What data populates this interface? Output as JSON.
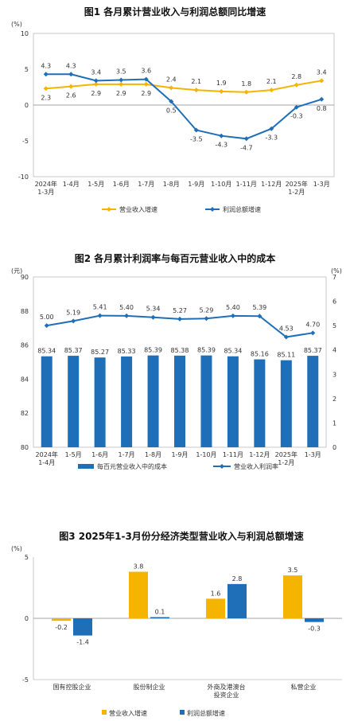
{
  "chart_data": [
    {
      "type": "line",
      "title": "图1  各月累计营业收入与利润总额同比增速",
      "ylabel": "(%)",
      "ylim": [
        -10,
        10
      ],
      "yticks": [
        "10",
        "5",
        "0",
        "-5",
        "-10"
      ],
      "categories": [
        "2024年\n1-3月",
        "1-4月",
        "1-5月",
        "1-6月",
        "1-7月",
        "1-8月",
        "1-9月",
        "1-10月",
        "1-11月",
        "1-12月",
        "2025年\n1-2月",
        "1-3月"
      ],
      "series": [
        {
          "name": "营业收入增速",
          "color": "#f5b400",
          "values": [
            2.3,
            2.6,
            2.9,
            2.9,
            2.9,
            2.4,
            2.1,
            1.9,
            1.8,
            2.1,
            2.8,
            3.4
          ],
          "labels": [
            "2.3",
            "2.6",
            "2.9",
            "2.9",
            "2.9",
            "2.4",
            "2.1",
            "1.9",
            "1.8",
            "2.1",
            "2.8",
            "3.4"
          ]
        },
        {
          "name": "利润总额增速",
          "color": "#1f6fb8",
          "values": [
            4.3,
            4.3,
            3.4,
            3.5,
            3.6,
            0.5,
            -3.5,
            -4.3,
            -4.7,
            -3.3,
            -0.3,
            0.8
          ],
          "labels": [
            "4.3",
            "4.3",
            "3.4",
            "3.5",
            "3.6",
            "0.5",
            "-3.5",
            "-4.3",
            "-4.7",
            "-3.3",
            "-0.3",
            "0.8"
          ]
        }
      ],
      "legend": "bottom"
    },
    {
      "type": "bar+line",
      "title": "图2  各月累计利润率与每百元营业收入中的成本",
      "ylabel_left": "(元)",
      "ylabel_right": "(%)",
      "ylim_left": [
        80,
        90
      ],
      "ylim_right": [
        0,
        7
      ],
      "yticks_left": [
        "90",
        "88",
        "86",
        "84",
        "82",
        "80"
      ],
      "yticks_right": [
        "7",
        "6",
        "5",
        "4",
        "3",
        "2",
        "1",
        "0"
      ],
      "categories": [
        "2024年\n1-4月",
        "1-5月",
        "1-6月",
        "1-7月",
        "1-8月",
        "1-9月",
        "1-10月",
        "1-11月",
        "1-12月",
        "2025年\n1-2月",
        "1-3月"
      ],
      "bars": {
        "name": "每百元营业收入中的成本",
        "color": "#1f6fb8",
        "values": [
          85.34,
          85.37,
          85.27,
          85.33,
          85.39,
          85.38,
          85.39,
          85.34,
          85.16,
          85.11,
          85.37
        ],
        "labels": [
          "85.34",
          "85.37",
          "85.27",
          "85.33",
          "85.39",
          "85.38",
          "85.39",
          "85.34",
          "85.16",
          "85.11",
          "85.37"
        ]
      },
      "line": {
        "name": "营业收入利润率",
        "color": "#1f6fb8",
        "values": [
          5.0,
          5.19,
          5.41,
          5.4,
          5.34,
          5.27,
          5.29,
          5.4,
          5.39,
          4.53,
          4.7
        ],
        "labels": [
          "5.00",
          "5.19",
          "5.41",
          "5.40",
          "5.34",
          "5.27",
          "5.29",
          "5.40",
          "5.39",
          "4.53",
          "4.70"
        ]
      },
      "legend": "bottom"
    },
    {
      "type": "bar",
      "title": "图3  2025年1-3月份分经济类型营业收入与利润总额增速",
      "ylabel": "(%)",
      "ylim": [
        -5,
        5
      ],
      "yticks": [
        "5",
        "0",
        "-5"
      ],
      "categories": [
        "国有控股企业",
        "股份制企业",
        "外商及港澳台\n投资企业",
        "私营企业"
      ],
      "series": [
        {
          "name": "营业收入增速",
          "color": "#f5b400",
          "values": [
            -0.2,
            3.8,
            1.6,
            3.5
          ],
          "labels": [
            "-0.2",
            "3.8",
            "1.6",
            "3.5"
          ]
        },
        {
          "name": "利润总额增速",
          "color": "#1f6fb8",
          "values": [
            -1.4,
            0.1,
            2.8,
            -0.3
          ],
          "labels": [
            "-1.4",
            "0.1",
            "2.8",
            "-0.3"
          ]
        }
      ],
      "legend": "bottom"
    }
  ]
}
